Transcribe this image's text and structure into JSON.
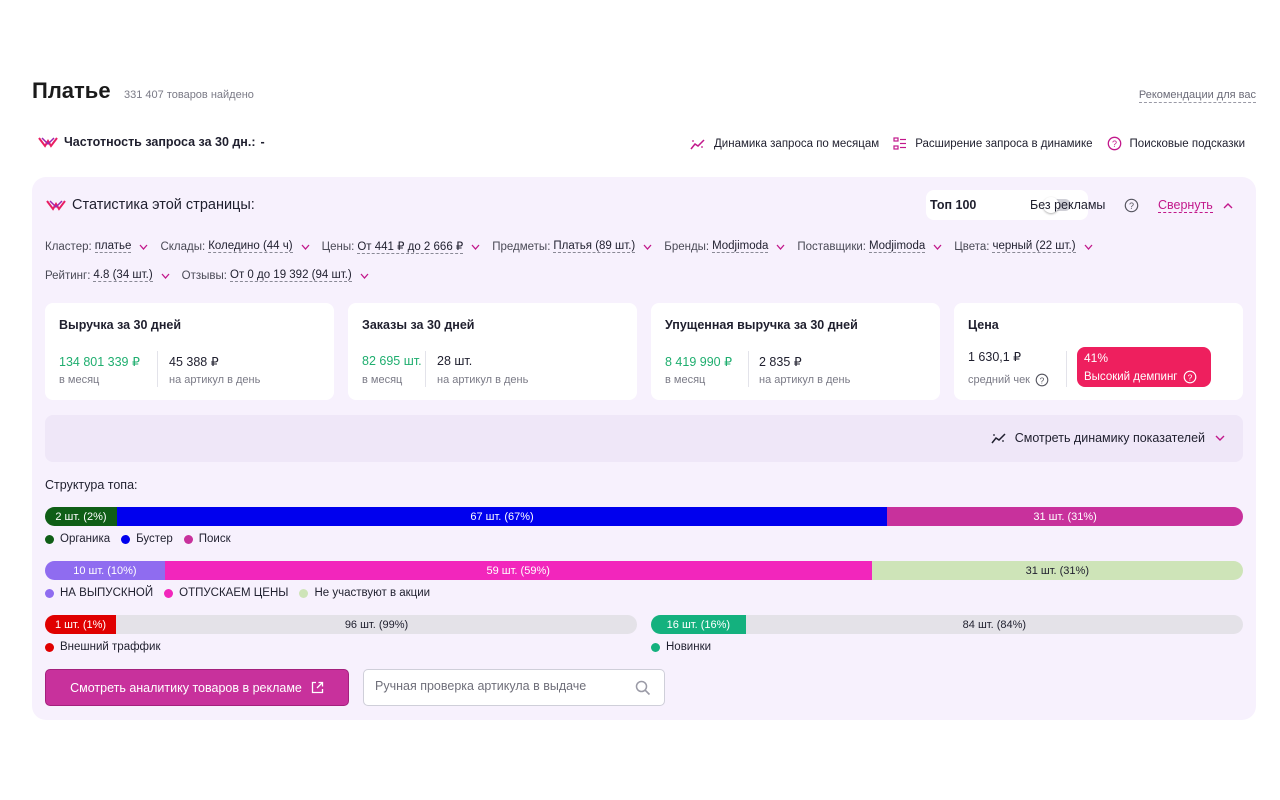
{
  "header": {
    "title": "Платье",
    "found_count": "331 407 товаров найдено",
    "recommendations_link": "Рекомендации для вас"
  },
  "frequency": {
    "label": "Частотность запроса за 30 дн.:",
    "value": "-"
  },
  "top_links": [
    {
      "label": "Динамика запроса по месяцам",
      "icon": "trend-chart-icon"
    },
    {
      "label": "Расширение запроса в динамике",
      "icon": "list-icon"
    },
    {
      "label": "Поисковые подсказки",
      "icon": "question-icon"
    }
  ],
  "stats": {
    "title": "Статистика этой страницы:",
    "top100_label": "Топ 100",
    "no_ads_label": "Без рекламы",
    "collapse_label": "Свернуть"
  },
  "filters_row1": [
    {
      "label": "Кластер:",
      "value": "платье"
    },
    {
      "label": "Склады:",
      "value": "Коледино (44 ч)"
    },
    {
      "label": "Цены:",
      "value": "От 441 ₽ до 2 666 ₽"
    },
    {
      "label": "Предметы:",
      "value": "Платья (89 шт.)"
    },
    {
      "label": "Бренды:",
      "value": "Modjimoda"
    },
    {
      "label": "Поставщики:",
      "value": "Modjimoda"
    },
    {
      "label": "Цвета:",
      "value": "черный (22 шт.)"
    }
  ],
  "filters_row2": [
    {
      "label": "Рейтинг:",
      "value": "4.8 (34 шт.)"
    },
    {
      "label": "Отзывы:",
      "value": "От 0 до 19 392 (94 шт.)"
    }
  ],
  "cards": {
    "revenue": {
      "title": "Выручка за 30 дней",
      "value": "134 801 339 ₽",
      "sub": "в месяц",
      "value2": "45 388 ₽",
      "sub2": "на артикул в день"
    },
    "orders": {
      "title": "Заказы за 30 дней",
      "value": "82 695 шт.",
      "sub": "в месяц",
      "value2": "28 шт.",
      "sub2": "на артикул в день"
    },
    "lost": {
      "title": "Упущенная выручка за 30 дней",
      "value": "8 419 990 ₽",
      "sub": "в месяц",
      "value2": "2 835 ₽",
      "sub2": "на артикул в день"
    },
    "price": {
      "title": "Цена",
      "value": "1 630,1 ₽",
      "sub": "средний чек",
      "dumping_percent": "41%",
      "dumping_label": "Высокий демпинг"
    }
  },
  "dynamics_link": "Смотреть динамику показателей",
  "structure": {
    "label": "Структура топа:",
    "bar1": {
      "segments": [
        {
          "label": "2 шт. (2%)",
          "percent": 6,
          "color": "#0f5e16",
          "text": "#ffffff"
        },
        {
          "label": "67 шт. (67%)",
          "percent": 64.3,
          "color": "#0000ee",
          "text": "#ffffff"
        },
        {
          "label": "31 шт. (31%)",
          "percent": 29.7,
          "color": "#c8319c",
          "text": "#ffffff"
        }
      ],
      "legend": [
        {
          "label": "Органика",
          "color": "#0f5e16"
        },
        {
          "label": "Бустер",
          "color": "#0000ee"
        },
        {
          "label": "Поиск",
          "color": "#c8319c"
        }
      ]
    },
    "bar2": {
      "segments": [
        {
          "label": "10 шт. (10%)",
          "percent": 10,
          "color": "#8f6cf0",
          "text": "#ffffff"
        },
        {
          "label": "59 шт. (59%)",
          "percent": 59,
          "color": "#f226bc",
          "text": "#ffffff"
        },
        {
          "label": "31 шт. (31%)",
          "percent": 31,
          "color": "#cee4b8",
          "text": "#1f1f2e"
        }
      ],
      "legend": [
        {
          "label": "НА ВЫПУСКНОЙ",
          "color": "#8f6cf0"
        },
        {
          "label": "ОТПУСКАЕМ ЦЕНЫ",
          "color": "#f226bc"
        },
        {
          "label": "Не участвуют в акции",
          "color": "#cee4b8"
        }
      ]
    },
    "bar3": {
      "segments": [
        {
          "label": "1 шт. (1%)",
          "percent": 12,
          "color": "#e00000",
          "text": "#ffffff"
        },
        {
          "label": "96 шт. (99%)",
          "percent": 88,
          "color": "#e4e2e8",
          "text": "#1f1f2e"
        }
      ],
      "legend": [
        {
          "label": "Внешний траффик",
          "color": "#e00000"
        }
      ]
    },
    "bar4": {
      "segments": [
        {
          "label": "16 шт. (16%)",
          "percent": 16,
          "color": "#14b17e",
          "text": "#ffffff"
        },
        {
          "label": "84 шт. (84%)",
          "percent": 84,
          "color": "#e4e2e8",
          "text": "#1f1f2e"
        }
      ],
      "legend": [
        {
          "label": "Новинки",
          "color": "#14b17e"
        }
      ]
    }
  },
  "actions": {
    "ad_button": "Смотреть аналитику товаров в рекламе",
    "check_placeholder": "Ручная проверка артикула в выдаче"
  }
}
